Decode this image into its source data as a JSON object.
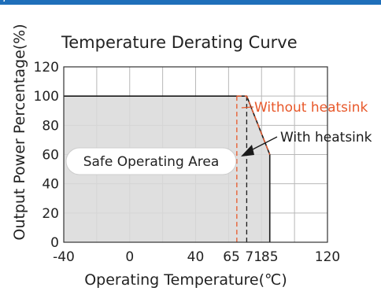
{
  "colors": {
    "topbar": "#1f6fba",
    "area_fill": "#d9d9d9",
    "curve": "#1a1a1a",
    "without_heatsink": "#e8582a",
    "with_heatsink": "#1a1a1a",
    "grid": "#b8b8b8"
  },
  "chart_data": {
    "type": "area",
    "title": "Temperature Derating Curve",
    "xlabel": "Operating Temperature(℃)",
    "ylabel": "Output Power Percentage(%)",
    "xlim": [
      -40,
      120
    ],
    "ylim": [
      0,
      120
    ],
    "x_ticks": [
      -40,
      0,
      40,
      65,
      71,
      85,
      120
    ],
    "x_tick_labels": [
      "-40",
      "0",
      "40",
      "65",
      "71",
      "85",
      "120"
    ],
    "y_ticks": [
      0,
      20,
      40,
      60,
      80,
      100,
      120
    ],
    "y_tick_labels": [
      "0",
      "20",
      "40",
      "60",
      "80",
      "100",
      "120"
    ],
    "grid": true,
    "series": [
      {
        "name": "Safe Operating Area",
        "x": [
          -40,
          71,
          85,
          85
        ],
        "y": [
          100,
          100,
          60,
          0
        ]
      }
    ],
    "reference_lines": [
      {
        "name": "Without heatsink",
        "style": "dashed",
        "x": 65
      },
      {
        "name": "With heatsink",
        "style": "dashed",
        "x": 71
      }
    ],
    "without_heatsink_curve": {
      "x": [
        65,
        71,
        85
      ],
      "y": [
        100,
        100,
        60
      ]
    },
    "annotations": {
      "without_heatsink": "Without  heatsink",
      "with_heatsink": "With heatsink",
      "safe_area": "Safe Operating Area"
    }
  }
}
